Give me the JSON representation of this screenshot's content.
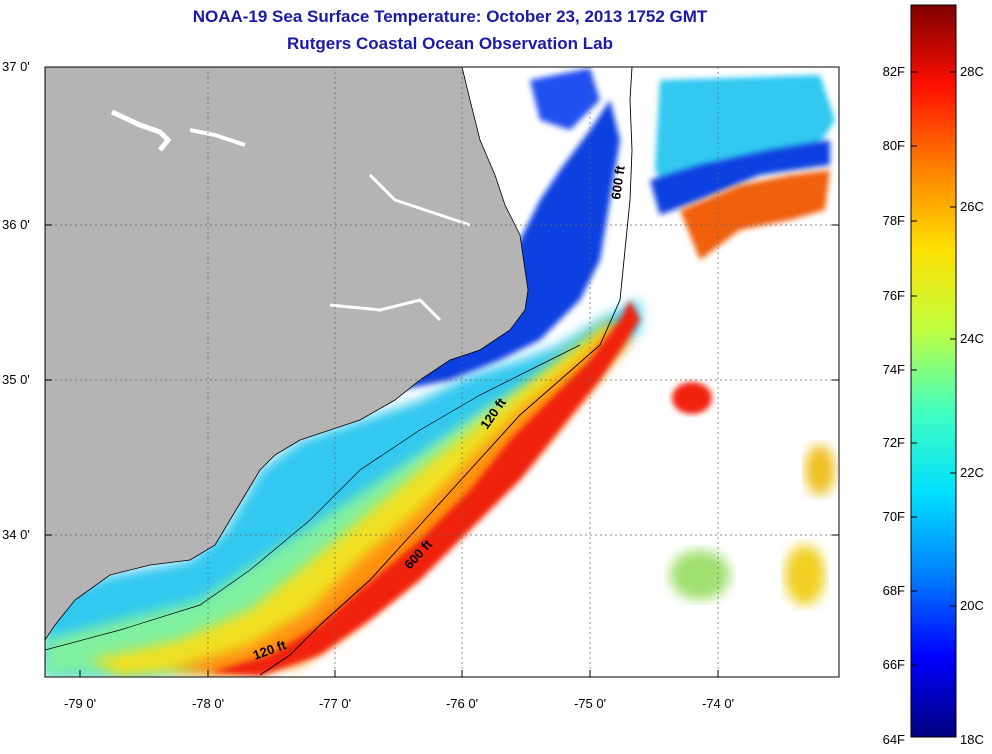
{
  "title_line1": "NOAA-19 Sea Surface Temperature:  October 23, 2013 1752 GMT",
  "title_line2": "Rutgers Coastal Ocean Observation Lab",
  "lat_labels": [
    "37 0'",
    "36 0'",
    "35 0'",
    "34 0'"
  ],
  "lon_labels": [
    "-79 0'",
    "-78 0'",
    "-77 0'",
    "-76 0'",
    "-75 0'",
    "-74 0'"
  ],
  "isobaths": [
    {
      "label": "600 ft"
    },
    {
      "label": "120 ft"
    },
    {
      "label": "600 ft"
    },
    {
      "label": "120 ft"
    }
  ],
  "colorbar": {
    "fahrenheit": [
      "82F",
      "80F",
      "78F",
      "76F",
      "74F",
      "72F",
      "70F",
      "68F",
      "66F",
      "64F"
    ],
    "celsius": [
      "28C",
      "26C",
      "24C",
      "22C",
      "20C",
      "18C"
    ],
    "gradient": [
      "#00007f",
      "#0000ff",
      "#0080ff",
      "#00e0ff",
      "#40ffbf",
      "#bfff40",
      "#ffe000",
      "#ff8000",
      "#ff1000",
      "#7f0000"
    ]
  },
  "colors": {
    "land": "#b4b4b4",
    "title": "#1a1aa8",
    "ocean_cold": "#1040e0",
    "ocean_cyan": "#30c8f0",
    "ocean_green": "#80f0a0",
    "ocean_yellow": "#f0e020",
    "ocean_orange": "#ff9010",
    "ocean_red": "#f02010"
  }
}
